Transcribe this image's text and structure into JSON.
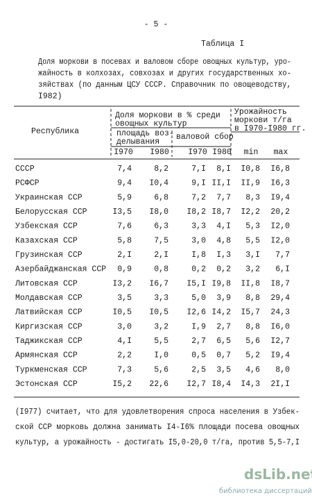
{
  "page_number": "- 5 -",
  "table_label": "Таблица I",
  "caption_lines": [
    "Доля моркови в посевах и валовом сборе овощных культур, уро-",
    "жайность в колхозах, совхозах и других государственных хо-",
    "зяйствах (по данным ЦСУ СССР. Справочник по овощеводству,",
    "I982)"
  ],
  "table": {
    "header": {
      "republic": "Республика",
      "share_lines": [
        "Доля моркови в % среди",
        "овощных культур"
      ],
      "area_lines": [
        "площадь воз-",
        "делывания"
      ],
      "harvest": "валовой сбор",
      "yield_lines": [
        "Урожайность",
        "моркови т/га",
        "в I970-I980 гг."
      ],
      "subcolumns": [
        "I970",
        "I980",
        "I970",
        "I980",
        "min",
        "max"
      ]
    },
    "rows": [
      [
        "СССР",
        "7,4",
        "8,2",
        "7,I",
        "8,I",
        "I0,8",
        "I6,8"
      ],
      [
        "РСФСР",
        "9,4",
        "I0,4",
        "9,I",
        "II,I",
        "II,9",
        "I6,3"
      ],
      [
        "Украинская ССР",
        "5,9",
        "6,8",
        "7,2",
        "7,7",
        "8,3",
        "I9,4"
      ],
      [
        "Белорусская ССР",
        "I3,5",
        "I8,0",
        "I8,2",
        "I8,7",
        "I2,2",
        "20,2"
      ],
      [
        "Узбекская ССР",
        "7,6",
        "6,3",
        "3,3",
        "4,I",
        "5,3",
        "I2,0"
      ],
      [
        "Казахская ССР",
        "5,8",
        "7,5",
        "3,0",
        "4,8",
        "5,5",
        "I2,0"
      ],
      [
        "Грузинская ССР",
        "2,I",
        "2,I",
        "I,8",
        "I,3",
        "3,I",
        "7,7"
      ],
      [
        "Азербайджанская ССР",
        "0,9",
        "0,8",
        "0,2",
        "0,2",
        "3,2",
        "6,I"
      ],
      [
        "Литовская ССР",
        "I3,2",
        "I6,7",
        "I5,I",
        "I9,8",
        "II,8",
        "I8,7"
      ],
      [
        "Молдавская ССР",
        "3,5",
        "3,3",
        "5,0",
        "3,9",
        "8,8",
        "29,4"
      ],
      [
        "Латвийская ССР",
        "I0,5",
        "I0,5",
        "I2,6",
        "I4,2",
        "I5,7",
        "24,3"
      ],
      [
        "Киргизская ССР",
        "3,0",
        "3,2",
        "I,9",
        "2,7",
        "8,8",
        "I6,0"
      ],
      [
        "Таджикская ССР",
        "4,I",
        "5,5",
        "2,7",
        "6,5",
        "5,6",
        "I2,7"
      ],
      [
        "Армянская ССР",
        "2,2",
        "I,0",
        "0,5",
        "0,7",
        "5,2",
        "I9,4"
      ],
      [
        "Туркменская ССР",
        "7,3",
        "5,6",
        "2,5",
        "3,5",
        "4,6",
        "8,0"
      ],
      [
        "Эстонская ССР",
        "I5,2",
        "22,6",
        "I2,7",
        "I8,4",
        "I4,3",
        "2I,I"
      ]
    ]
  },
  "footer_lines": [
    "(I977) считает, что для удовлетворения спроса населения в Узбек-",
    "ской ССР морковь должна занимать I4-I6% площади посева овощных",
    "культур, а урожайность - достигать I5,0-20,0 т/га, против 5,5-7,I"
  ],
  "watermark": {
    "logo": "dsLib.net",
    "tagline": "библиотека диссертаций"
  }
}
